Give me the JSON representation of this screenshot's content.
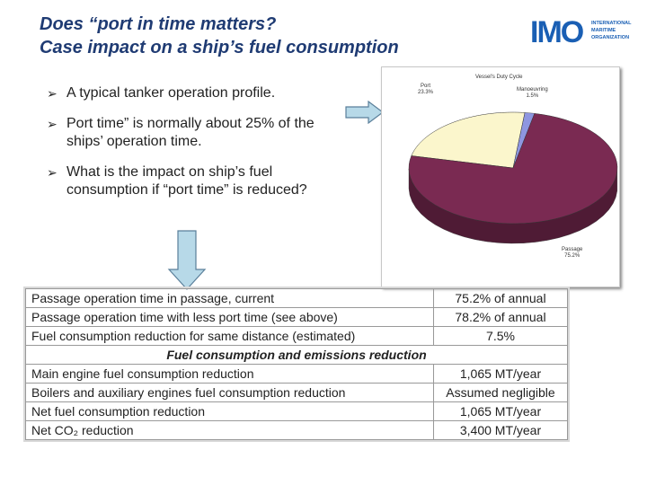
{
  "title": {
    "line1": "Does “port in time matters?",
    "line2": "Case impact on a ship’s fuel consumption"
  },
  "logo": {
    "word": "IMO",
    "text": [
      "INTERNATIONAL",
      "MARITIME",
      "ORGANIZATION"
    ]
  },
  "bullets": [
    "A typical tanker operation profile.",
    "Port time” is normally about 25% of the ships’ operation time.",
    "What is the impact on ship’s fuel consumption if “port time” is reduced?"
  ],
  "chart_data": {
    "type": "pie",
    "title": "Vessel's Duty Cycle",
    "categories": [
      "Passage",
      "Port",
      "Manoeuvring"
    ],
    "labels": [
      "Passage\n75.2%",
      "Port\n23.3%",
      "Manoeuvring\n1.5%"
    ],
    "values": [
      75.2,
      23.3,
      1.5
    ],
    "colors": [
      "#7a2a52",
      "#fbf6cc",
      "#8e96e0"
    ]
  },
  "table": {
    "rows": [
      {
        "label": "Passage operation time in passage, current",
        "value": "75.2% of annual"
      },
      {
        "label": "Passage operation time with less port time (see above)",
        "value": "78.2% of annual"
      },
      {
        "label": "Fuel consumption reduction for same distance (estimated)",
        "value": "7.5%"
      }
    ],
    "section": "Fuel consumption and emissions reduction",
    "rows2": [
      {
        "label": "Main engine fuel consumption reduction",
        "value": "1,065 MT/year"
      },
      {
        "label": "Boilers and auxiliary engines fuel consumption reduction",
        "value": "Assumed negligible"
      },
      {
        "label": "Net fuel consumption reduction",
        "value": "1,065 MT/year"
      },
      {
        "label": "Net CO₂ reduction",
        "value": "3,400 MT/year"
      }
    ]
  },
  "colors": {
    "title": "#1f3b73",
    "arrow_fill": "#b7d9e8",
    "arrow_stroke": "#5a7f9a"
  }
}
